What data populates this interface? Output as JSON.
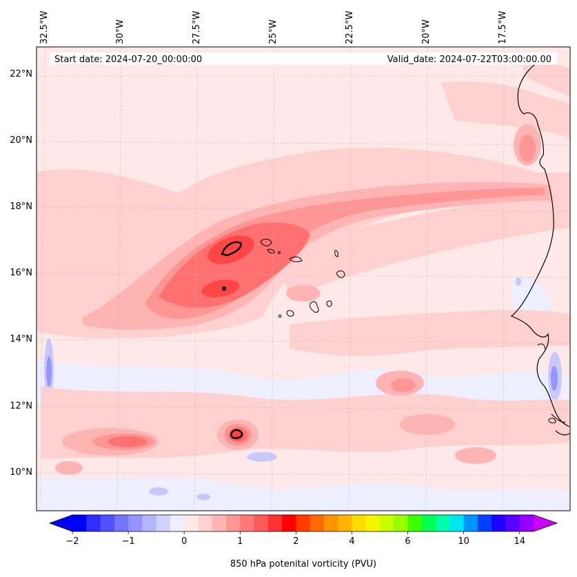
{
  "header": {
    "start_date": "Start date: 2024-07-20_00:00:00",
    "valid_date": "Valid_date: 2024-07-22T03:00:00.00"
  },
  "longitude_labels": [
    "32.5°W",
    "30°W",
    "27.5°W",
    "25°W",
    "22.5°W",
    "20°W",
    "17.5°W"
  ],
  "latitude_labels": [
    "22°N",
    "20°N",
    "18°N",
    "16°N",
    "14°N",
    "12°N",
    "10°N"
  ],
  "colorbar": {
    "title": "850 hPa potenital vorticity (PVU)",
    "tick_labels": [
      "−2",
      "−1",
      "0",
      "1",
      "2",
      "4",
      "6",
      "10",
      "14"
    ],
    "colors": [
      "#0000ff",
      "#2d2dff",
      "#5050ff",
      "#7575ff",
      "#9595ff",
      "#b4b4ff",
      "#d2d2ff",
      "#eeeeff",
      "#ffe8e8",
      "#ffd0d0",
      "#ffb4b4",
      "#ff9696",
      "#ff7878",
      "#ff5a5a",
      "#ff3232",
      "#ff0000",
      "#ff3c00",
      "#ff6a00",
      "#ff9400",
      "#ffb400",
      "#ffdc00",
      "#f5f500",
      "#c8ff00",
      "#96ff00",
      "#3cff00",
      "#00ff50",
      "#00ffaa",
      "#00e6f0",
      "#0096ff",
      "#0040ff",
      "#1e00ff",
      "#5a00ff",
      "#9600ff"
    ],
    "extend_low_color": "#0000ff",
    "extend_high_color": "#cc00ff"
  },
  "palette": {
    "background_pv": "#ffe8e8",
    "light_pink": "#ffd0d0",
    "pink": "#ffb4b4",
    "medium_red": "#ff9696",
    "red": "#ff7070",
    "strong_red": "#ff4646",
    "light_blue": "#eeeeff",
    "blue": "#c8c8ff",
    "coast": "#000000"
  }
}
